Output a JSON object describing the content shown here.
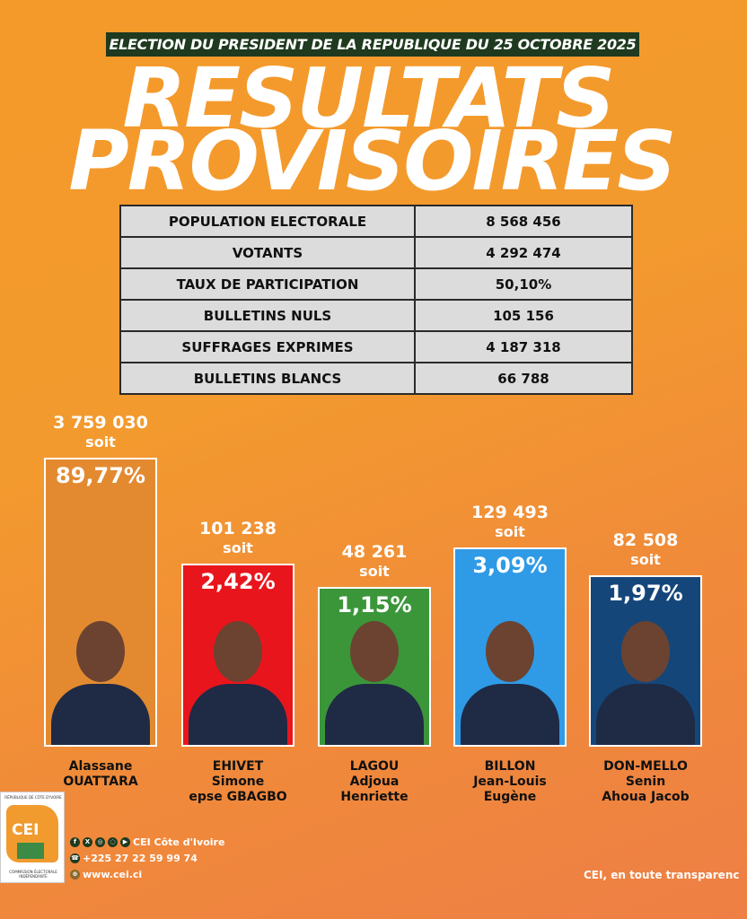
{
  "header": {
    "banner": "ELECTION DU PRESIDENT DE LA REPUBLIQUE DU 25 OCTOBRE 2025",
    "title_line1": "RESULTATS",
    "title_line2": "PROVISOIRES"
  },
  "stats": [
    {
      "label": "POPULATION ELECTORALE",
      "value": "8 568 456"
    },
    {
      "label": "VOTANTS",
      "value": "4 292 474"
    },
    {
      "label": "TAUX DE PARTICIPATION",
      "value": "50,10%"
    },
    {
      "label": "BULLETINS NULS",
      "value": "105 156"
    },
    {
      "label": "SUFFRAGES EXPRIMES",
      "value": "4 187 318"
    },
    {
      "label": "BULLETINS BLANCS",
      "value": "66 788"
    }
  ],
  "soit": "soit",
  "candidates": [
    {
      "votes": "3 759 030",
      "pct": "89,77%",
      "name": [
        "Alassane",
        "OUATTARA",
        ""
      ],
      "color": "#e38a30"
    },
    {
      "votes": "101 238",
      "pct": "2,42%",
      "name": [
        "EHIVET",
        "Simone",
        "epse GBAGBO"
      ],
      "color": "#e8151c"
    },
    {
      "votes": "48 261",
      "pct": "1,15%",
      "name": [
        "LAGOU",
        "Adjoua",
        "Henriette"
      ],
      "color": "#3b963a"
    },
    {
      "votes": "129 493",
      "pct": "3,09%",
      "name": [
        "BILLON",
        "Jean-Louis",
        "Eugène"
      ],
      "color": "#2f9be6"
    },
    {
      "votes": "82 508",
      "pct": "1,97%",
      "name": [
        "DON-MELLO",
        "Senin",
        "Ahoua Jacob"
      ],
      "color": "#15467a"
    }
  ],
  "chart_data": {
    "type": "bar",
    "title": "RESULTATS PROVISOIRES",
    "categories": [
      "Alassane OUATTARA",
      "EHIVET Simone epse GBAGBO",
      "LAGOU Adjoua Henriette",
      "BILLON Jean-Louis Eugène",
      "DON-MELLO Senin Ahoua Jacob"
    ],
    "values": [
      3759030,
      101238,
      48261,
      129493,
      82508
    ],
    "percent": [
      89.77,
      2.42,
      1.15,
      3.09,
      1.97
    ],
    "xlabel": "",
    "ylabel": ""
  },
  "footer": {
    "logo_top": "RÉPUBLIQUE DE CÔTE D'IVOIRE",
    "logo_text": "CEI",
    "logo_bottom": "COMMISSION ÉLECTORALE INDÉPENDANTE",
    "social": "CEI Côte d'Ivoire",
    "phone": "+225 27 22 59 99 74",
    "website": "www.cei.ci",
    "slogan": "CEI, en toute transparenc"
  }
}
